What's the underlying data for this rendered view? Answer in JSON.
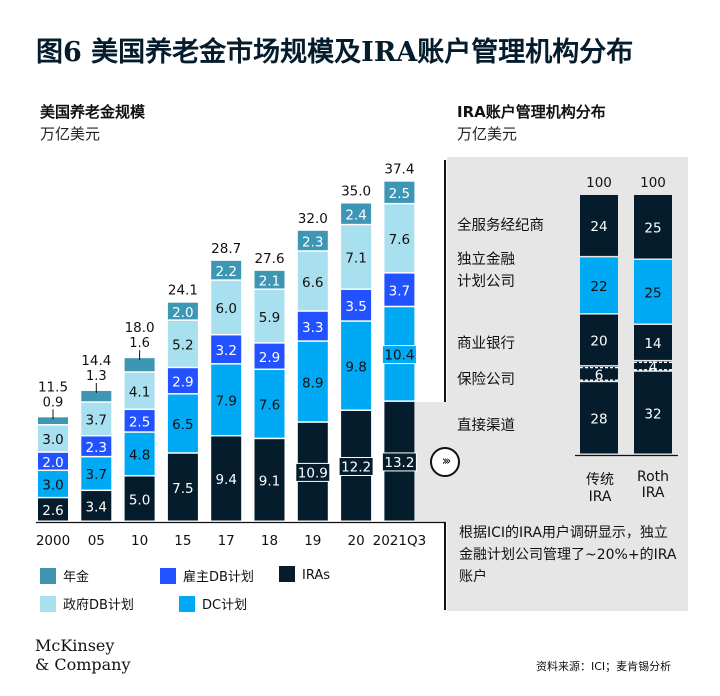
{
  "title": "图6 美国养老金市场规模及IRA账户管理机构分布",
  "left_panel": {
    "subtitle": "美国养老金规模",
    "unit": "万亿美元"
  },
  "right_panel": {
    "subtitle": "IRA账户管理机构分布",
    "unit": "万亿美元",
    "note": "根据ICI的IRA用户调研显示，独立金融计划公司管理了~20%+的IRA账户"
  },
  "source": "资料来源：ICI；麦肯锡分析",
  "logo": {
    "line1": "McKinsey",
    "line2": "& Company"
  },
  "colors": {
    "irAs": "#051c2c",
    "dc": "#00a9f4",
    "employer_db": "#2251ff",
    "gov_db": "#a8e0ef",
    "annuity": "#3c96b4",
    "panel_bg": "#e6e6e6"
  },
  "chart_data": [
    {
      "type": "bar",
      "stacked": true,
      "title": "美国养老金规模",
      "ylabel": "万亿美元",
      "categories": [
        "2000",
        "05",
        "10",
        "15",
        "17",
        "18",
        "19",
        "20",
        "2021Q3"
      ],
      "totals": [
        "11.5",
        "14.4",
        "18.0",
        "24.1",
        "28.7",
        "27.6",
        "32.0",
        "35.0",
        "37.4"
      ],
      "series": [
        {
          "name": "IRAs",
          "values": [
            2.6,
            3.4,
            5.0,
            7.5,
            9.4,
            9.1,
            10.9,
            12.2,
            13.2
          ]
        },
        {
          "name": "DC计划",
          "values": [
            3.0,
            3.7,
            4.8,
            6.5,
            7.9,
            7.6,
            8.9,
            9.8,
            10.4
          ]
        },
        {
          "name": "雇主DB计划",
          "values": [
            2.0,
            2.3,
            2.5,
            2.9,
            3.2,
            2.9,
            3.3,
            3.5,
            3.7
          ]
        },
        {
          "name": "政府DB计划",
          "values": [
            3.0,
            3.7,
            4.1,
            5.2,
            6.0,
            5.9,
            6.6,
            7.1,
            7.6
          ]
        },
        {
          "name": "年金",
          "values": [
            0.9,
            1.3,
            1.6,
            2.0,
            2.2,
            2.1,
            2.3,
            2.4,
            2.5
          ]
        }
      ],
      "legend": [
        {
          "name": "年金",
          "key": "annuity"
        },
        {
          "name": "雇主DB计划",
          "key": "employer_db"
        },
        {
          "name": "IRAs",
          "key": "irAs"
        },
        {
          "name": "政府DB计划",
          "key": "gov_db"
        },
        {
          "name": "DC计划",
          "key": "dc"
        }
      ]
    },
    {
      "type": "bar",
      "stacked": true,
      "title": "IRA账户管理机构分布",
      "categories": [
        "传统IRA",
        "Roth IRA"
      ],
      "category_lines": [
        [
          "传统",
          "IRA"
        ],
        [
          "Roth",
          "IRA"
        ]
      ],
      "totals": [
        "100",
        "100"
      ],
      "series": [
        {
          "name": "直接渠道",
          "values": [
            28,
            32
          ]
        },
        {
          "name": "保险公司",
          "values": [
            6,
            4
          ]
        },
        {
          "name": "商业银行",
          "values": [
            20,
            14
          ]
        },
        {
          "name": "独立金融计划公司",
          "values": [
            22,
            25
          ]
        },
        {
          "name": "全服务经纪商",
          "values": [
            24,
            25
          ]
        }
      ],
      "row_labels": [
        [
          "全服务经纪商"
        ],
        [
          "独立金融",
          "计划公司"
        ],
        [
          "商业银行"
        ],
        [
          "保险公司"
        ],
        [
          "直接渠道"
        ]
      ]
    }
  ]
}
